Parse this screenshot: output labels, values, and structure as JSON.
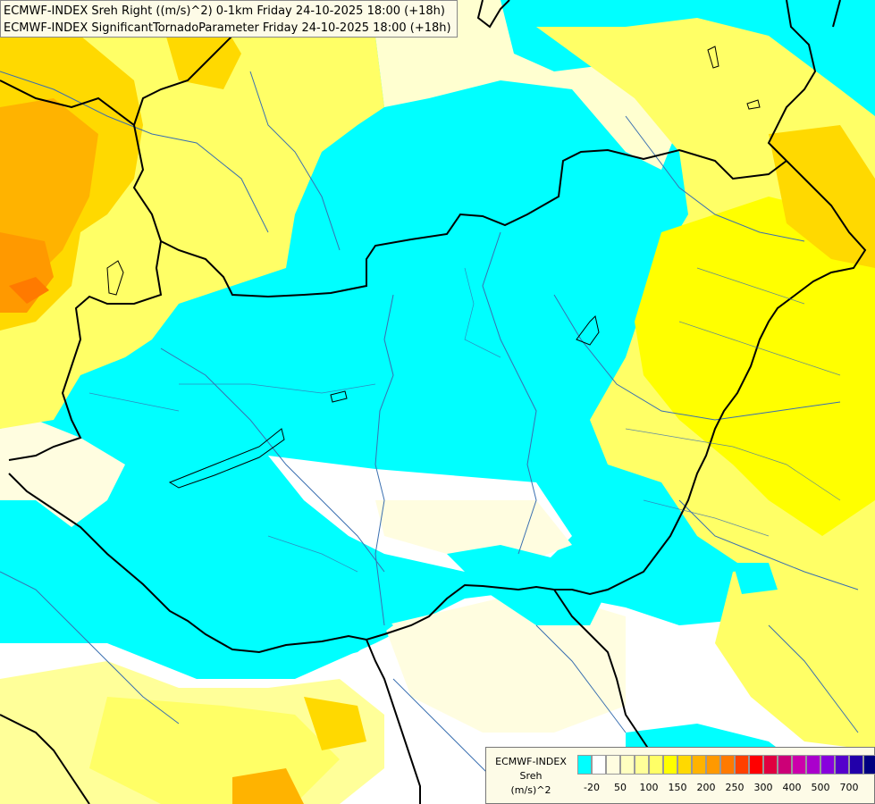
{
  "header": {
    "line1": "ECMWF-INDEX Sreh Right ((m/s)^2) 0-1km Friday 24-10-2025 18:00 (+18h)",
    "line2": "ECMWF-INDEX SignificantTornadoParameter Friday 24-10-2025 18:00 (+18h)"
  },
  "legend": {
    "title1": "ECMWF-INDEX",
    "title2": "Sreh",
    "title3": "(m/s)^2",
    "colors": [
      "#00ffff",
      "#ffffff",
      "#fffde0",
      "#ffffc0",
      "#ffff99",
      "#ffff66",
      "#ffff00",
      "#ffd900",
      "#ffb300",
      "#ff9900",
      "#ff7a00",
      "#ff4000",
      "#ff0000",
      "#e00040",
      "#cc0077",
      "#cc00aa",
      "#aa00cc",
      "#8800dd",
      "#5500cc",
      "#2200aa",
      "#000080"
    ],
    "ticks": [
      "-20",
      "50",
      "100",
      "150",
      "200",
      "250",
      "300",
      "400",
      "500",
      "700"
    ]
  },
  "map": {
    "background": "#00ffff",
    "border_color": "#000000",
    "river_color": "#3a6fb0"
  }
}
